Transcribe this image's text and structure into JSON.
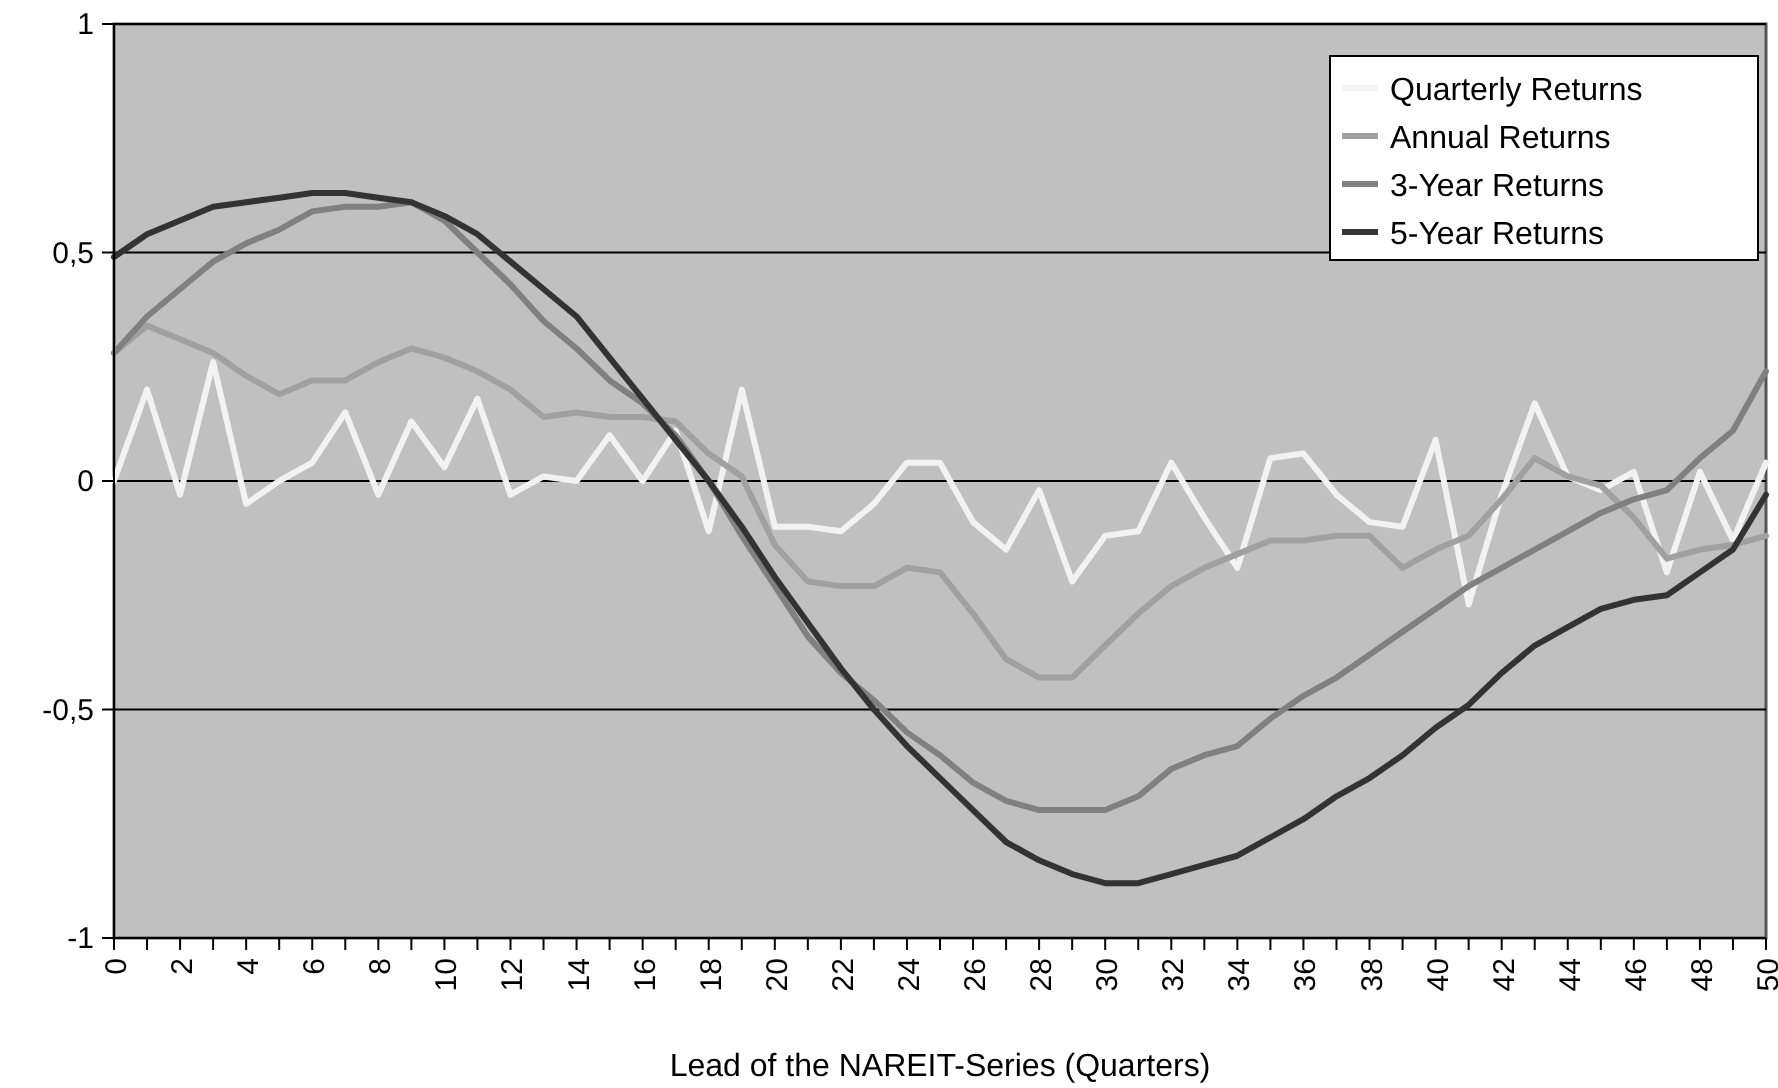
{
  "chart_data": {
    "type": "line",
    "xlabel": "Lead of the NAREIT-Series (Quarters)",
    "x": [
      0,
      1,
      2,
      3,
      4,
      5,
      6,
      7,
      8,
      9,
      10,
      11,
      12,
      13,
      14,
      15,
      16,
      17,
      18,
      19,
      20,
      21,
      22,
      23,
      24,
      25,
      26,
      27,
      28,
      29,
      30,
      31,
      32,
      33,
      34,
      35,
      36,
      37,
      38,
      39,
      40,
      41,
      42,
      43,
      44,
      45,
      46,
      47,
      48,
      49,
      50
    ],
    "xlim": [
      0,
      50
    ],
    "xticks": [
      0,
      {
        "value": 1,
        "label": null
      },
      2,
      {
        "value": 3,
        "label": null
      },
      4,
      {
        "value": 5,
        "label": null
      },
      6,
      {
        "value": 7,
        "label": null
      },
      8,
      {
        "value": 9,
        "label": null
      },
      10,
      {
        "value": 11,
        "label": null
      },
      12,
      {
        "value": 13,
        "label": null
      },
      14,
      {
        "value": 15,
        "label": null
      },
      16,
      {
        "value": 17,
        "label": null
      },
      18,
      {
        "value": 19,
        "label": null
      },
      20,
      {
        "value": 21,
        "label": null
      },
      22,
      {
        "value": 23,
        "label": null
      },
      24,
      {
        "value": 25,
        "label": null
      },
      26,
      {
        "value": 27,
        "label": null
      },
      28,
      {
        "value": 29,
        "label": null
      },
      30,
      {
        "value": 31,
        "label": null
      },
      32,
      {
        "value": 33,
        "label": null
      },
      34,
      {
        "value": 35,
        "label": null
      },
      36,
      {
        "value": 37,
        "label": null
      },
      38,
      {
        "value": 39,
        "label": null
      },
      40,
      {
        "value": 41,
        "label": null
      },
      42,
      {
        "value": 43,
        "label": null
      },
      44,
      {
        "value": 45,
        "label": null
      },
      46,
      {
        "value": 47,
        "label": null
      },
      48,
      {
        "value": 49,
        "label": null
      },
      50
    ],
    "ylim": [
      -1,
      1
    ],
    "yticks": [
      -1,
      {
        "value": -0.5,
        "label": "-0,5"
      },
      0,
      {
        "value": 0.5,
        "label": "0,5"
      },
      1
    ],
    "grid": "y",
    "legend": "top right",
    "line_style": "solid",
    "marker": "none",
    "series": [
      {
        "name": "Quarterly Returns",
        "color": "#f2f2f2",
        "values": [
          0,
          0.2,
          -0.03,
          0.26,
          -0.05,
          0,
          0.04,
          0.15,
          -0.03,
          0.13,
          0.03,
          0.18,
          -0.03,
          0.01,
          0,
          0.1,
          0,
          0.11,
          -0.11,
          0.2,
          -0.1,
          -0.1,
          -0.11,
          -0.05,
          0.04,
          0.04,
          -0.09,
          -0.15,
          -0.02,
          -0.22,
          -0.12,
          -0.11,
          0.04,
          -0.08,
          -0.19,
          0.05,
          0.06,
          -0.03,
          -0.09,
          -0.1,
          0.09,
          -0.27,
          -0.03,
          0.17,
          0.01,
          -0.02,
          0.02,
          -0.2,
          0.02,
          -0.13,
          0.04
        ]
      },
      {
        "name": "Annual Returns",
        "color": "#a0a0a0",
        "values": [
          0.28,
          0.34,
          0.31,
          0.28,
          0.23,
          0.19,
          0.22,
          0.22,
          0.26,
          0.29,
          0.27,
          0.24,
          0.2,
          0.14,
          0.15,
          0.14,
          0.14,
          0.13,
          0.06,
          0.01,
          -0.14,
          -0.22,
          -0.23,
          -0.23,
          -0.19,
          -0.2,
          -0.29,
          -0.39,
          -0.43,
          -0.43,
          -0.36,
          -0.29,
          -0.23,
          -0.19,
          -0.16,
          -0.13,
          -0.13,
          -0.12,
          -0.12,
          -0.19,
          -0.15,
          -0.12,
          -0.04,
          0.05,
          0.01,
          -0.01,
          -0.08,
          -0.17,
          -0.15,
          -0.14,
          -0.12
        ]
      },
      {
        "name": "3-Year Returns",
        "color": "#808080",
        "values": [
          0.28,
          0.36,
          0.42,
          0.48,
          0.52,
          0.55,
          0.59,
          0.6,
          0.6,
          0.61,
          0.57,
          0.5,
          0.43,
          0.35,
          0.29,
          0.22,
          0.17,
          0.1,
          0.0,
          -0.12,
          -0.23,
          -0.34,
          -0.42,
          -0.48,
          -0.55,
          -0.6,
          -0.66,
          -0.7,
          -0.72,
          -0.72,
          -0.72,
          -0.69,
          -0.63,
          -0.6,
          -0.58,
          -0.52,
          -0.47,
          -0.43,
          -0.38,
          -0.33,
          -0.28,
          -0.23,
          -0.19,
          -0.15,
          -0.11,
          -0.07,
          -0.04,
          -0.02,
          0.05,
          0.11,
          0.24
        ]
      },
      {
        "name": "5-Year Returns",
        "color": "#333333",
        "values": [
          0.49,
          0.54,
          0.57,
          0.6,
          0.61,
          0.62,
          0.63,
          0.63,
          0.62,
          0.61,
          0.58,
          0.54,
          0.48,
          0.42,
          0.36,
          0.27,
          0.18,
          0.09,
          0.0,
          -0.1,
          -0.21,
          -0.31,
          -0.41,
          -0.5,
          -0.58,
          -0.65,
          -0.72,
          -0.79,
          -0.83,
          -0.86,
          -0.88,
          -0.88,
          -0.86,
          -0.84,
          -0.82,
          -0.78,
          -0.74,
          -0.69,
          -0.65,
          -0.6,
          -0.54,
          -0.49,
          -0.42,
          -0.36,
          -0.32,
          -0.28,
          -0.26,
          -0.25,
          -0.2,
          -0.15,
          -0.03
        ]
      }
    ]
  }
}
